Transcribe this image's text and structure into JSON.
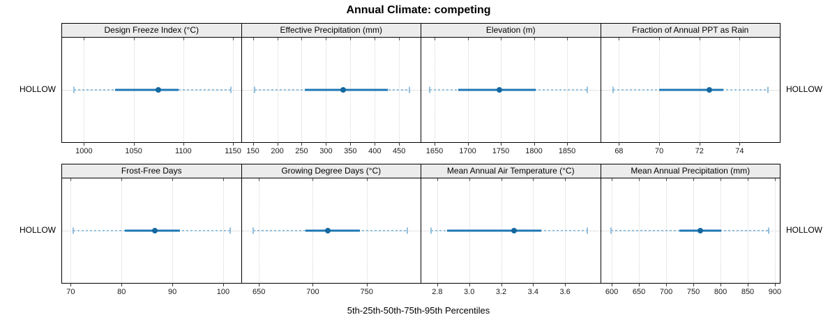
{
  "title": "Annual Climate: competing",
  "caption": "5th-25th-50th-75th-95th Percentiles",
  "row_label": "HOLLOW",
  "colors": {
    "whisker": "#92c0de",
    "iqr_bar": "#1f77b4",
    "median_dot": "#15689f",
    "strip_bg": "#ececec",
    "panel_border": "#000000",
    "gridline": "#d4d4d4"
  },
  "chart_data": {
    "type": "dotplot-percentile",
    "title": "Annual Climate: competing",
    "xlabel": "5th-25th-50th-75th-95th Percentiles",
    "group_label": "HOLLOW",
    "layout": "2 rows x 4 cols",
    "percentile_order": [
      "5th",
      "25th",
      "50th",
      "75th",
      "95th"
    ],
    "panels": [
      {
        "strip": "Design Freeze Index (°C)",
        "xlim": [
          978,
          1158
        ],
        "ticks": [
          {
            "label": "1000",
            "v": 1000
          },
          {
            "label": "1050",
            "v": 1050
          },
          {
            "label": "1100",
            "v": 1100
          },
          {
            "label": "1150",
            "v": 1150
          }
        ],
        "percentiles": [
          990,
          1031,
          1075,
          1095,
          1148
        ]
      },
      {
        "strip": "Effective Precipitation (mm)",
        "xlim": [
          127,
          494
        ],
        "ticks": [
          {
            "label": "150",
            "v": 150
          },
          {
            "label": "200",
            "v": 200
          },
          {
            "label": "250",
            "v": 250
          },
          {
            "label": "300",
            "v": 300
          },
          {
            "label": "350",
            "v": 350
          },
          {
            "label": "400",
            "v": 400
          },
          {
            "label": "450",
            "v": 450
          }
        ],
        "percentiles": [
          153,
          257,
          335,
          427,
          471
        ]
      },
      {
        "strip": "Elevation (m)",
        "xlim": [
          1630,
          1900
        ],
        "ticks": [
          {
            "label": "1650",
            "v": 1650
          },
          {
            "label": "1700",
            "v": 1700
          },
          {
            "label": "1750",
            "v": 1750
          },
          {
            "label": "1800",
            "v": 1800
          },
          {
            "label": "1850",
            "v": 1850
          }
        ],
        "percentiles": [
          1643,
          1686,
          1748,
          1803,
          1881
        ]
      },
      {
        "strip": "Fraction of Annual PPT as Rain",
        "xlim": [
          67.1,
          76.0
        ],
        "ticks": [
          {
            "label": "68",
            "v": 68
          },
          {
            "label": "70",
            "v": 70
          },
          {
            "label": "72",
            "v": 72
          },
          {
            "label": "74",
            "v": 74
          }
        ],
        "percentiles": [
          67.7,
          70.0,
          72.5,
          73.2,
          75.4
        ]
      },
      {
        "strip": "Frost-Free Days",
        "xlim": [
          68.3,
          103.5
        ],
        "ticks": [
          {
            "label": "70",
            "v": 70
          },
          {
            "label": "80",
            "v": 80
          },
          {
            "label": "90",
            "v": 90
          },
          {
            "label": "100",
            "v": 100
          }
        ],
        "percentiles": [
          70.5,
          80.7,
          86.6,
          91.5,
          101.4
        ]
      },
      {
        "strip": "Growing Degree Days (°C)",
        "xlim": [
          634,
          800
        ],
        "ticks": [
          {
            "label": "650",
            "v": 650
          },
          {
            "label": "700",
            "v": 700
          },
          {
            "label": "750",
            "v": 750
          }
        ],
        "percentiles": [
          645,
          693,
          714,
          744,
          788
        ]
      },
      {
        "strip": "Mean Annual Air Temperature (°C)",
        "xlim": [
          2.7,
          3.82
        ],
        "ticks": [
          {
            "label": "2.8",
            "v": 2.8
          },
          {
            "label": "3.0",
            "v": 3.0
          },
          {
            "label": "3.2",
            "v": 3.2
          },
          {
            "label": "3.4",
            "v": 3.4
          },
          {
            "label": "3.6",
            "v": 3.6
          }
        ],
        "percentiles": [
          2.76,
          2.86,
          3.28,
          3.45,
          3.74
        ]
      },
      {
        "strip": "Mean Annual Precipitation (mm)",
        "xlim": [
          580,
          909
        ],
        "ticks": [
          {
            "label": "600",
            "v": 600
          },
          {
            "label": "650",
            "v": 650
          },
          {
            "label": "700",
            "v": 700
          },
          {
            "label": "750",
            "v": 750
          },
          {
            "label": "800",
            "v": 800
          },
          {
            "label": "850",
            "v": 850
          },
          {
            "label": "900",
            "v": 900
          }
        ],
        "percentiles": [
          598,
          724,
          763,
          801,
          888
        ]
      }
    ]
  }
}
